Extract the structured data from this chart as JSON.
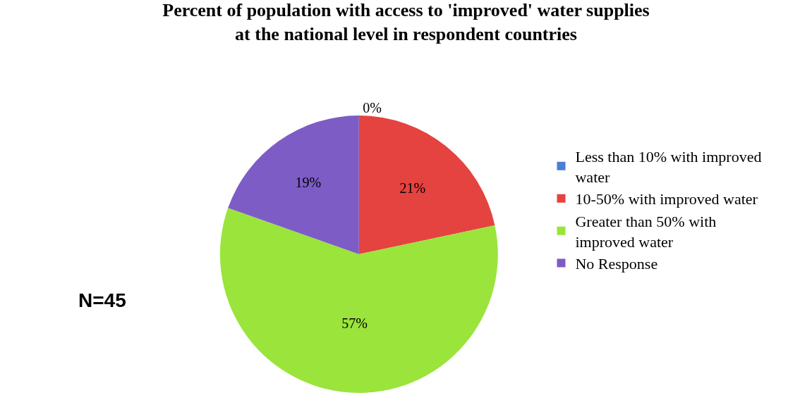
{
  "chart_data": {
    "type": "pie",
    "title": "Percent of population with access to 'improved' water supplies\nat the national level in respondent countries",
    "categories": [
      "Less than 10% with improved water",
      "10-50% with improved water",
      "Greater than 50% with improved water",
      "No Response"
    ],
    "values": [
      0,
      21,
      57,
      19
    ],
    "colors": [
      "#4a7fd6",
      "#e4433f",
      "#9ae43c",
      "#7d5cc6"
    ],
    "value_labels": [
      "0%",
      "21%",
      "57%",
      "19%"
    ],
    "legend": "right",
    "annotations": [
      "N=45"
    ]
  }
}
